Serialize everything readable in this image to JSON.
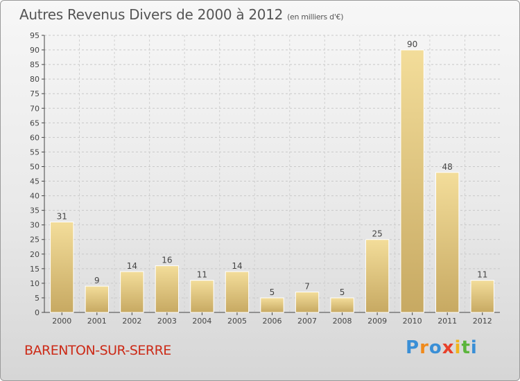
{
  "chart_data": {
    "type": "bar",
    "title": "Autres Revenus Divers de 2000 à 2012",
    "subtitle": "(en milliers d'€)",
    "categories": [
      "2000",
      "2001",
      "2002",
      "2003",
      "2004",
      "2005",
      "2006",
      "2007",
      "2008",
      "2009",
      "2010",
      "2011",
      "2012"
    ],
    "values": [
      31,
      9,
      14,
      16,
      11,
      14,
      5,
      7,
      5,
      25,
      90,
      48,
      11
    ],
    "ylim": [
      0,
      95
    ],
    "yticks": [
      0,
      5,
      10,
      15,
      20,
      25,
      30,
      35,
      40,
      45,
      50,
      55,
      60,
      65,
      70,
      75,
      80,
      85,
      90,
      95
    ],
    "grid": true,
    "colors": {
      "bar_light": "#f3dd9a",
      "bar_dark": "#c7a962"
    }
  },
  "commune": "BARENTON-SUR-SERRE",
  "logo": {
    "letters": [
      "P",
      "r",
      "o",
      "x",
      "i",
      "t",
      "i"
    ],
    "colors": [
      "#3a8fd6",
      "#f08a1c",
      "#3a8fd6",
      "#e8402a",
      "#f0b41c",
      "#5bb53c",
      "#3a8fd6"
    ]
  }
}
